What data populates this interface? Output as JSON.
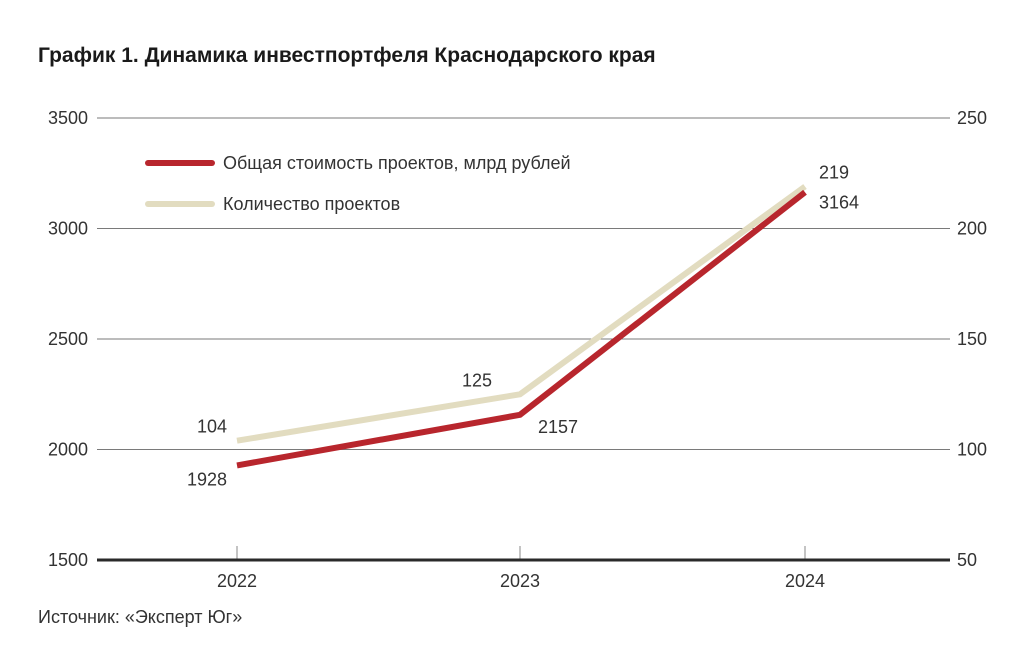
{
  "chart_data": {
    "type": "line",
    "title": "График 1. Динамика инвестпортфеля Краснодарского края",
    "source": "Источник: «Эксперт Юг»",
    "categories": [
      "2022",
      "2023",
      "2024"
    ],
    "y_left": {
      "range": [
        1500,
        3500
      ],
      "ticks": [
        "1500",
        "2000",
        "2500",
        "3000",
        "3500"
      ]
    },
    "y_right": {
      "range": [
        50,
        250
      ],
      "ticks": [
        "50",
        "100",
        "150",
        "200",
        "250"
      ]
    },
    "grid": true,
    "legend_position": "top-left",
    "series": [
      {
        "name": "Общая стоимость проектов, млрд рублей",
        "axis": "left",
        "values": [
          1928,
          2157,
          3164
        ],
        "labels": [
          "1928",
          "2157",
          "3164"
        ],
        "color": "#b8262d"
      },
      {
        "name": "Количество проектов",
        "axis": "right",
        "values": [
          104,
          125,
          219
        ],
        "labels": [
          "104",
          "125",
          "219"
        ],
        "color": "#e2dcc0"
      }
    ]
  }
}
